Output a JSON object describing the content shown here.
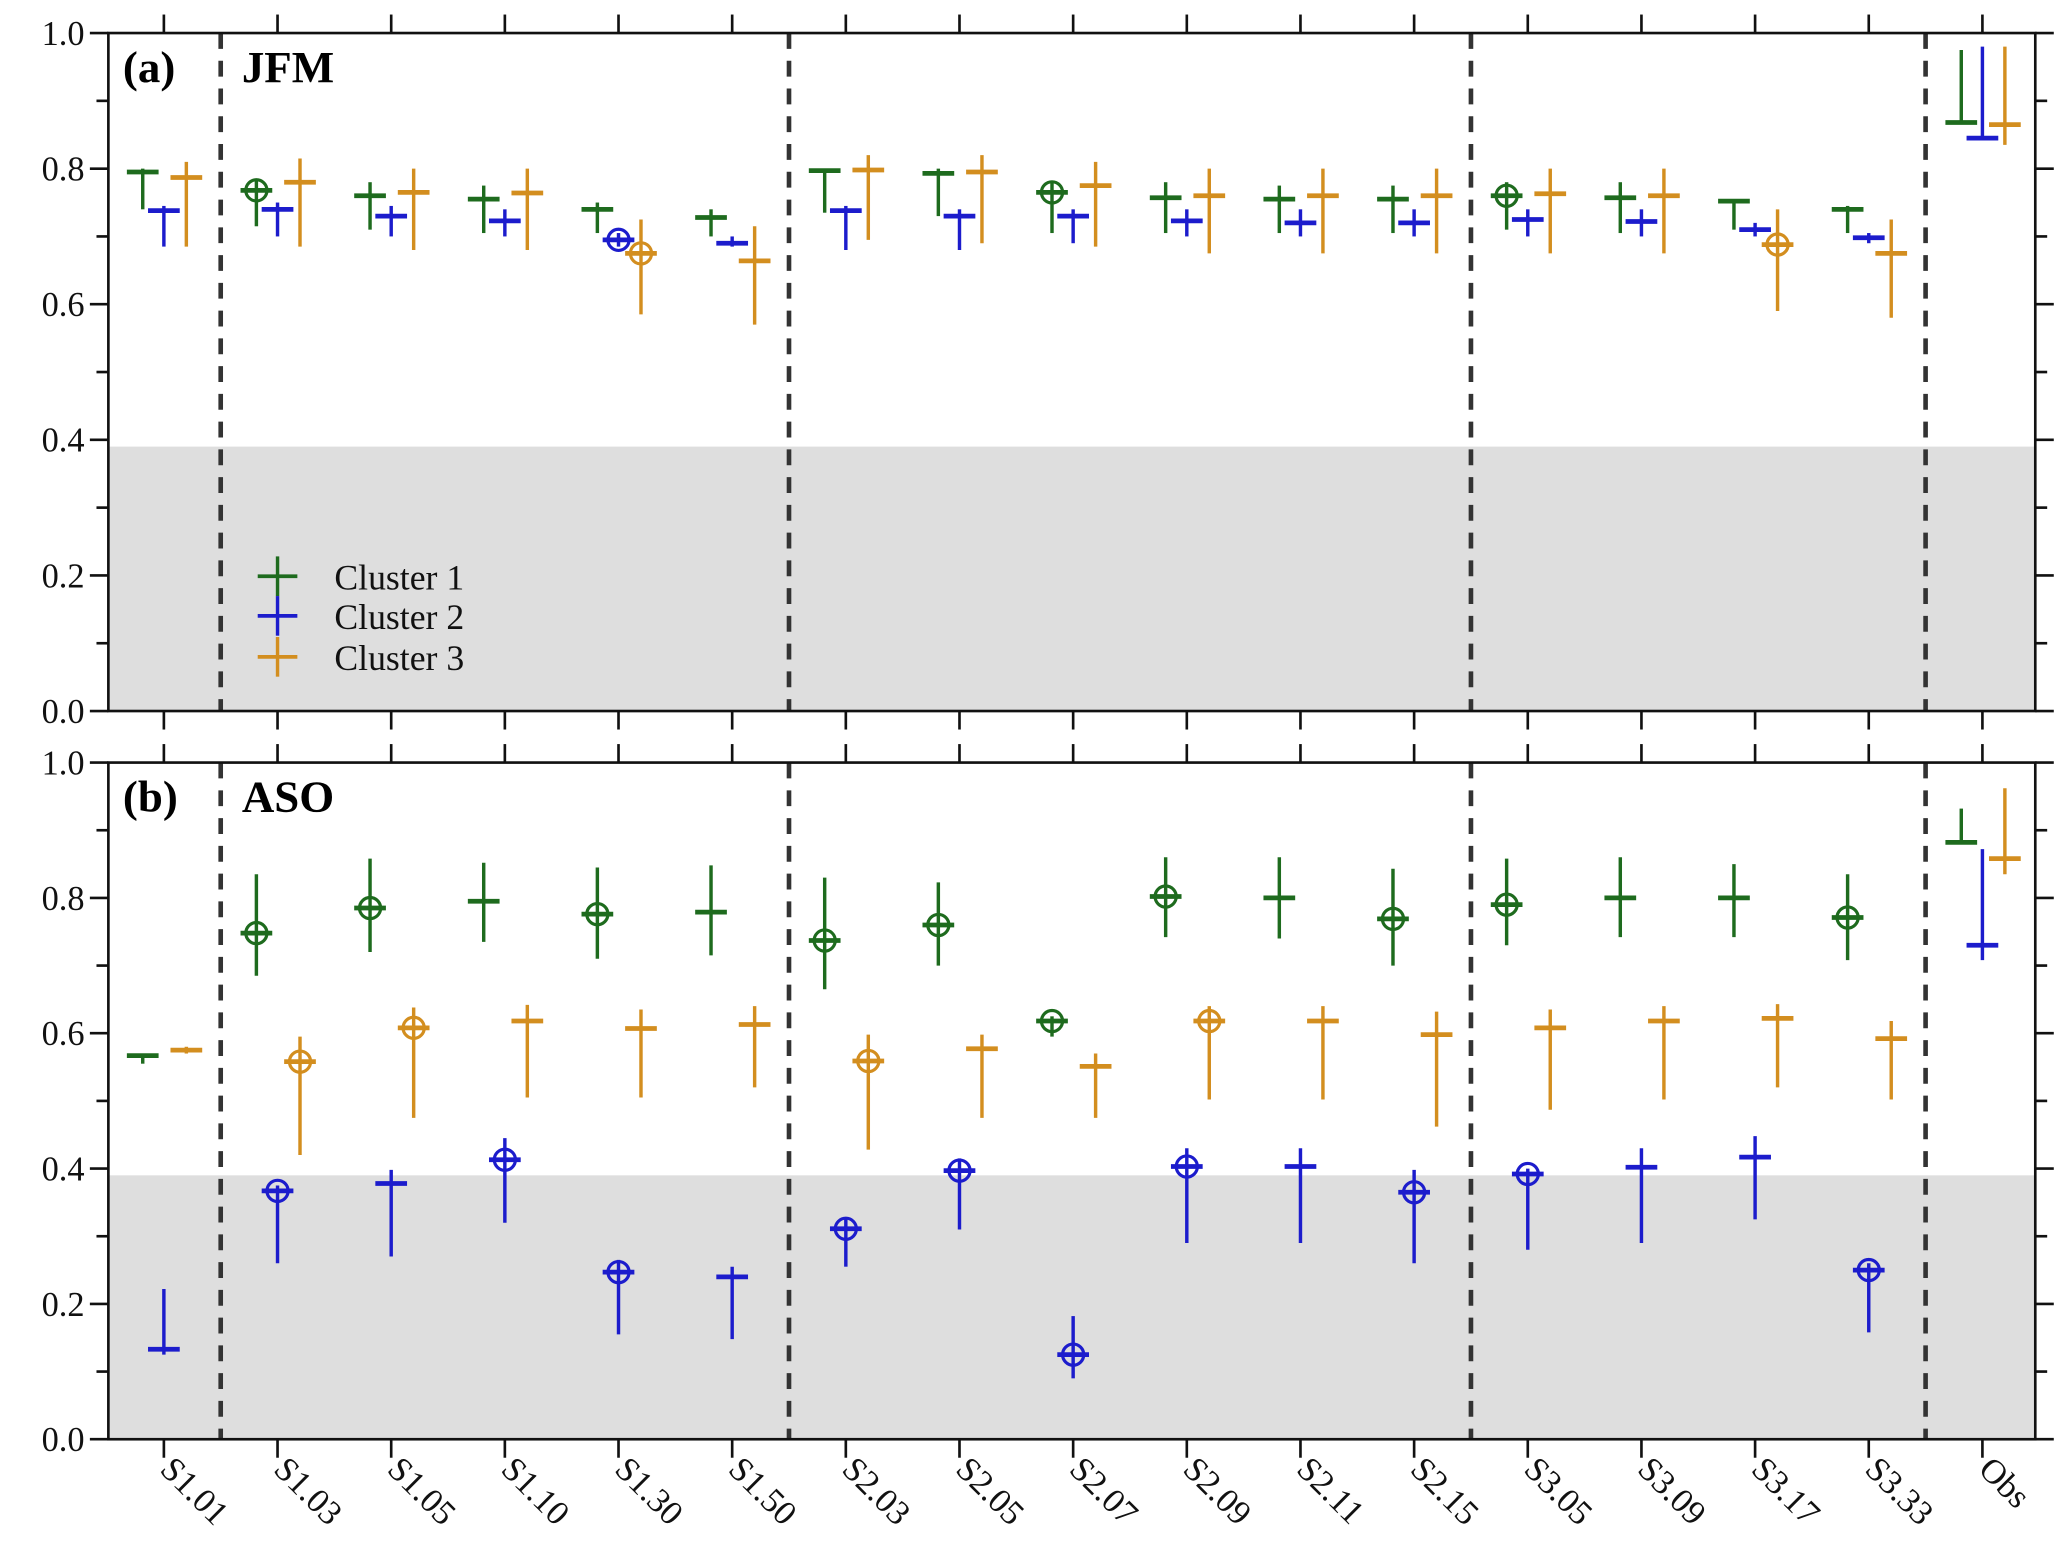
{
  "chart_data": {
    "type": "errorbar",
    "categories": [
      "S1.01",
      "S1.03",
      "S1.05",
      "S1.10",
      "S1.30",
      "S1.50",
      "S2.03",
      "S2.05",
      "S2.07",
      "S2.09",
      "S2.11",
      "S2.15",
      "S3.05",
      "S3.09",
      "S3.17",
      "S3.33",
      "Obs"
    ],
    "group_separators_after": [
      "S1.01",
      "S1.50",
      "S2.15",
      "S3.33"
    ],
    "ylim": [
      0,
      1
    ],
    "yticks": [
      "0.0",
      "0.2",
      "0.4",
      "0.6",
      "0.8",
      "1.0"
    ],
    "shaded_region": [
      0,
      0.39
    ],
    "legend": {
      "placement": "lower-left of panel a",
      "entries": [
        "Cluster 1",
        "Cluster 2",
        "Cluster 3"
      ]
    },
    "colors": {
      "Cluster 1": "#1e6b1e",
      "Cluster 2": "#1c1ccc",
      "Cluster 3": "#d38e1f"
    },
    "point_format": "[value, lower, upper, circled]",
    "panels": [
      {
        "label": "(a)",
        "title": "JFM",
        "series": [
          {
            "name": "Cluster 1",
            "values": [
              [
                0.795,
                0.74,
                0.8,
                0
              ],
              [
                0.768,
                0.715,
                0.785,
                1
              ],
              [
                0.76,
                0.71,
                0.78,
                0
              ],
              [
                0.755,
                0.705,
                0.775,
                0
              ],
              [
                0.74,
                0.705,
                0.75,
                0
              ],
              [
                0.728,
                0.7,
                0.74,
                0
              ],
              [
                0.797,
                0.735,
                0.8,
                0
              ],
              [
                0.793,
                0.73,
                0.8,
                0
              ],
              [
                0.765,
                0.705,
                0.78,
                1
              ],
              [
                0.757,
                0.705,
                0.78,
                0
              ],
              [
                0.755,
                0.705,
                0.775,
                0
              ],
              [
                0.755,
                0.705,
                0.775,
                0
              ],
              [
                0.76,
                0.71,
                0.78,
                1
              ],
              [
                0.757,
                0.705,
                0.78,
                0
              ],
              [
                0.752,
                0.71,
                0.755,
                0
              ],
              [
                0.74,
                0.705,
                0.745,
                0
              ],
              [
                0.868,
                0.868,
                0.975,
                0
              ]
            ]
          },
          {
            "name": "Cluster 2",
            "values": [
              [
                0.738,
                0.685,
                0.745,
                0
              ],
              [
                0.74,
                0.7,
                0.75,
                0
              ],
              [
                0.73,
                0.7,
                0.745,
                0
              ],
              [
                0.723,
                0.7,
                0.74,
                0
              ],
              [
                0.695,
                0.685,
                0.705,
                1
              ],
              [
                0.69,
                0.685,
                0.7,
                0
              ],
              [
                0.738,
                0.68,
                0.745,
                0
              ],
              [
                0.73,
                0.68,
                0.74,
                0
              ],
              [
                0.73,
                0.69,
                0.74,
                0
              ],
              [
                0.723,
                0.7,
                0.74,
                0
              ],
              [
                0.72,
                0.7,
                0.74,
                0
              ],
              [
                0.72,
                0.7,
                0.74,
                0
              ],
              [
                0.725,
                0.7,
                0.74,
                0
              ],
              [
                0.722,
                0.7,
                0.74,
                0
              ],
              [
                0.71,
                0.7,
                0.72,
                0
              ],
              [
                0.698,
                0.69,
                0.705,
                0
              ],
              [
                0.845,
                0.845,
                0.98,
                0
              ]
            ]
          },
          {
            "name": "Cluster 3",
            "values": [
              [
                0.787,
                0.685,
                0.81,
                0
              ],
              [
                0.78,
                0.685,
                0.815,
                0
              ],
              [
                0.765,
                0.68,
                0.8,
                0
              ],
              [
                0.764,
                0.68,
                0.8,
                0
              ],
              [
                0.675,
                0.585,
                0.725,
                1
              ],
              [
                0.664,
                0.57,
                0.715,
                0
              ],
              [
                0.798,
                0.695,
                0.82,
                0
              ],
              [
                0.795,
                0.69,
                0.82,
                0
              ],
              [
                0.775,
                0.685,
                0.81,
                0
              ],
              [
                0.76,
                0.675,
                0.8,
                0
              ],
              [
                0.76,
                0.675,
                0.8,
                0
              ],
              [
                0.76,
                0.675,
                0.8,
                0
              ],
              [
                0.763,
                0.675,
                0.8,
                0
              ],
              [
                0.76,
                0.675,
                0.8,
                0
              ],
              [
                0.688,
                0.59,
                0.74,
                1
              ],
              [
                0.675,
                0.58,
                0.725,
                0
              ],
              [
                0.865,
                0.835,
                0.98,
                0
              ]
            ]
          }
        ]
      },
      {
        "label": "(b)",
        "title": "ASO",
        "series": [
          {
            "name": "Cluster 1",
            "values": [
              [
                0.567,
                0.555,
                0.57,
                0
              ],
              [
                0.748,
                0.685,
                0.835,
                1
              ],
              [
                0.785,
                0.72,
                0.858,
                1
              ],
              [
                0.795,
                0.735,
                0.852,
                0
              ],
              [
                0.776,
                0.71,
                0.845,
                1
              ],
              [
                0.779,
                0.715,
                0.848,
                0
              ],
              [
                0.737,
                0.665,
                0.83,
                1
              ],
              [
                0.76,
                0.7,
                0.823,
                1
              ],
              [
                0.618,
                0.595,
                0.625,
                1
              ],
              [
                0.802,
                0.742,
                0.86,
                1
              ],
              [
                0.8,
                0.74,
                0.86,
                0
              ],
              [
                0.769,
                0.7,
                0.843,
                1
              ],
              [
                0.79,
                0.73,
                0.858,
                1
              ],
              [
                0.8,
                0.742,
                0.86,
                0
              ],
              [
                0.8,
                0.742,
                0.85,
                0
              ],
              [
                0.771,
                0.708,
                0.835,
                1
              ],
              [
                0.882,
                0.882,
                0.932,
                0
              ]
            ]
          },
          {
            "name": "Cluster 2",
            "values": [
              [
                0.133,
                0.125,
                0.222,
                0
              ],
              [
                0.367,
                0.26,
                0.375,
                1
              ],
              [
                0.378,
                0.27,
                0.398,
                0
              ],
              [
                0.413,
                0.32,
                0.445,
                1
              ],
              [
                0.247,
                0.155,
                0.265,
                1
              ],
              [
                0.24,
                0.148,
                0.255,
                0
              ],
              [
                0.311,
                0.255,
                0.325,
                1
              ],
              [
                0.397,
                0.31,
                0.415,
                1
              ],
              [
                0.125,
                0.09,
                0.182,
                1
              ],
              [
                0.403,
                0.29,
                0.43,
                1
              ],
              [
                0.403,
                0.29,
                0.43,
                0
              ],
              [
                0.365,
                0.26,
                0.398,
                1
              ],
              [
                0.392,
                0.28,
                0.4,
                1
              ],
              [
                0.402,
                0.29,
                0.43,
                0
              ],
              [
                0.417,
                0.325,
                0.448,
                0
              ],
              [
                0.25,
                0.158,
                0.26,
                1
              ],
              [
                0.73,
                0.708,
                0.872,
                0
              ]
            ]
          },
          {
            "name": "Cluster 3",
            "values": [
              [
                0.575,
                0.57,
                0.58,
                0
              ],
              [
                0.558,
                0.42,
                0.595,
                1
              ],
              [
                0.608,
                0.475,
                0.638,
                1
              ],
              [
                0.618,
                0.505,
                0.642,
                0
              ],
              [
                0.607,
                0.505,
                0.635,
                0
              ],
              [
                0.613,
                0.52,
                0.64,
                0
              ],
              [
                0.559,
                0.428,
                0.598,
                1
              ],
              [
                0.577,
                0.475,
                0.598,
                0
              ],
              [
                0.551,
                0.475,
                0.57,
                0
              ],
              [
                0.618,
                0.502,
                0.64,
                1
              ],
              [
                0.618,
                0.502,
                0.64,
                0
              ],
              [
                0.598,
                0.462,
                0.632,
                0
              ],
              [
                0.608,
                0.487,
                0.635,
                0
              ],
              [
                0.618,
                0.502,
                0.64,
                0
              ],
              [
                0.622,
                0.52,
                0.643,
                0
              ],
              [
                0.592,
                0.502,
                0.618,
                0
              ],
              [
                0.858,
                0.835,
                0.962,
                0
              ]
            ]
          }
        ]
      }
    ]
  }
}
